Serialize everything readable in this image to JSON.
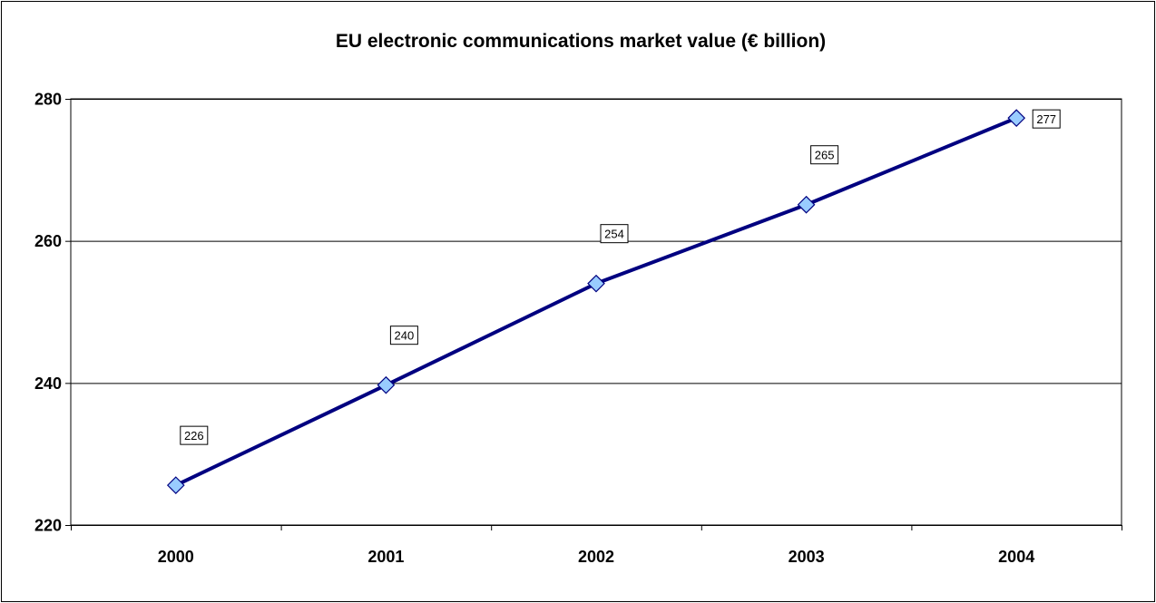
{
  "chart_data": {
    "type": "line",
    "title": "EU electronic communications market value (€ billion)",
    "xlabel": "",
    "ylabel": "",
    "categories": [
      "2000",
      "2001",
      "2002",
      "2003",
      "2004"
    ],
    "series": [
      {
        "values": [
          225.6,
          239.7,
          254.0,
          265.1,
          277.3
        ],
        "data_labels": [
          "226",
          "240",
          "254",
          "265",
          "277"
        ],
        "line_color": "#000080",
        "marker_fill": "#99ccff",
        "marker_stroke": "#000080",
        "marker": "diamond"
      }
    ],
    "ylim": [
      220,
      280
    ],
    "yticks": [
      220,
      240,
      260,
      280
    ],
    "grid": "horizontal",
    "legend": "none"
  }
}
